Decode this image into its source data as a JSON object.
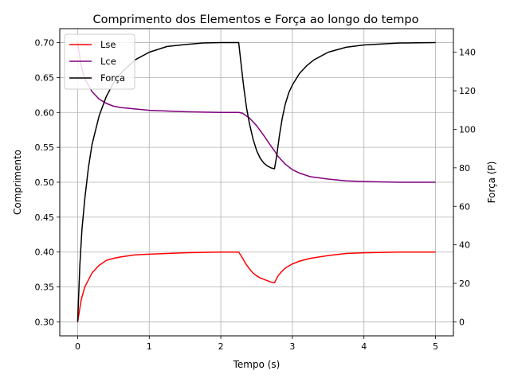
{
  "chart_data": {
    "type": "line",
    "title": "Comprimento dos Elementos e Força ao longo do tempo",
    "xlabel": "Tempo (s)",
    "ylabel_left": "Comprimento",
    "ylabel_right": "Força (P)",
    "xlim": [
      -0.25,
      5.25
    ],
    "ylim_left": [
      0.28,
      0.72
    ],
    "ylim_right": [
      -7.25,
      152.25
    ],
    "x_ticks": [
      0,
      1,
      2,
      3,
      4,
      5
    ],
    "x_tick_labels": [
      "0",
      "1",
      "2",
      "3",
      "4",
      "5"
    ],
    "y_left_ticks": [
      0.3,
      0.35,
      0.4,
      0.45,
      0.5,
      0.55,
      0.6,
      0.65,
      0.7
    ],
    "y_left_tick_labels": [
      "0.30",
      "0.35",
      "0.40",
      "0.45",
      "0.50",
      "0.55",
      "0.60",
      "0.65",
      "0.70"
    ],
    "y_right_ticks": [
      0,
      20,
      40,
      60,
      80,
      100,
      120,
      140
    ],
    "y_right_tick_labels": [
      "0",
      "20",
      "40",
      "60",
      "80",
      "100",
      "120",
      "140"
    ],
    "grid": true,
    "legend_position": "top-left",
    "series": [
      {
        "name": "Lse",
        "axis": "left",
        "color": "#ff0000",
        "x": [
          0,
          0.05,
          0.1,
          0.2,
          0.3,
          0.4,
          0.5,
          0.6,
          0.8,
          1.0,
          1.25,
          1.5,
          1.75,
          2.0,
          2.25,
          2.3,
          2.35,
          2.4,
          2.45,
          2.5,
          2.55,
          2.6,
          2.65,
          2.7,
          2.75,
          2.8,
          2.85,
          2.9,
          3.0,
          3.1,
          3.25,
          3.5,
          3.75,
          4.0,
          4.5,
          5.0
        ],
        "values": [
          0.3,
          0.332,
          0.35,
          0.37,
          0.381,
          0.388,
          0.391,
          0.393,
          0.396,
          0.397,
          0.398,
          0.399,
          0.3995,
          0.4,
          0.4,
          0.392,
          0.383,
          0.376,
          0.37,
          0.366,
          0.363,
          0.361,
          0.359,
          0.357,
          0.356,
          0.366,
          0.372,
          0.377,
          0.383,
          0.387,
          0.391,
          0.395,
          0.398,
          0.399,
          0.4,
          0.4
        ]
      },
      {
        "name": "Lce",
        "axis": "left",
        "color": "#800080",
        "x": [
          0,
          0.05,
          0.1,
          0.2,
          0.3,
          0.4,
          0.5,
          0.6,
          0.8,
          1.0,
          1.25,
          1.5,
          1.75,
          2.0,
          2.25,
          2.3,
          2.4,
          2.5,
          2.6,
          2.7,
          2.75,
          2.8,
          2.9,
          3.0,
          3.1,
          3.25,
          3.5,
          3.75,
          4.0,
          4.5,
          5.0
        ],
        "values": [
          0.7,
          0.666,
          0.648,
          0.63,
          0.619,
          0.613,
          0.609,
          0.607,
          0.605,
          0.603,
          0.602,
          0.601,
          0.6005,
          0.6,
          0.6,
          0.599,
          0.592,
          0.581,
          0.567,
          0.552,
          0.545,
          0.537,
          0.526,
          0.518,
          0.513,
          0.508,
          0.5045,
          0.502,
          0.501,
          0.5,
          0.5
        ]
      },
      {
        "name": "Força",
        "axis": "right",
        "color": "#000000",
        "x": [
          0,
          0.03,
          0.06,
          0.1,
          0.15,
          0.2,
          0.3,
          0.4,
          0.5,
          0.6,
          0.8,
          1.0,
          1.25,
          1.5,
          1.75,
          2.0,
          2.25,
          2.28,
          2.32,
          2.36,
          2.4,
          2.45,
          2.5,
          2.55,
          2.6,
          2.65,
          2.7,
          2.75,
          2.78,
          2.82,
          2.86,
          2.9,
          2.95,
          3.0,
          3.1,
          3.2,
          3.3,
          3.5,
          3.75,
          4.0,
          4.5,
          5.0
        ],
        "values": [
          0,
          29,
          48,
          64,
          80,
          92,
          107,
          117,
          124,
          129,
          136,
          140,
          143,
          144,
          144.8,
          145,
          145,
          135,
          122,
          111,
          103,
          95,
          89,
          85,
          82.5,
          81,
          80,
          79.5,
          86,
          97,
          106,
          113,
          119,
          123,
          129,
          133,
          136,
          140,
          142.6,
          143.8,
          144.8,
          145
        ]
      }
    ]
  }
}
